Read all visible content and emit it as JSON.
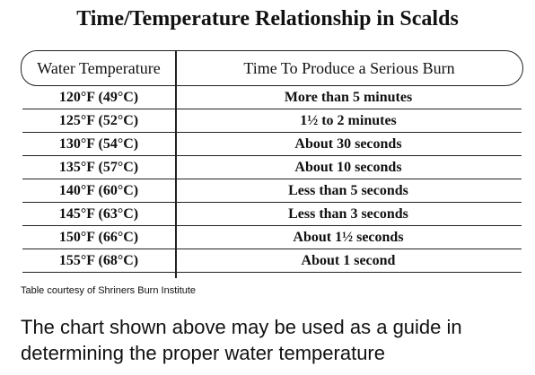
{
  "title": "Time/Temperature Relationship in Scalds",
  "table": {
    "headers": [
      "Water Temperature",
      "Time To Produce a Serious Burn"
    ],
    "rows": [
      [
        "120°F (49°C)",
        "More than 5 minutes"
      ],
      [
        "125°F (52°C)",
        "1½ to 2 minutes"
      ],
      [
        "130°F (54°C)",
        "About 30 seconds"
      ],
      [
        "135°F (57°C)",
        "About 10 seconds"
      ],
      [
        "140°F (60°C)",
        "Less than 5 seconds"
      ],
      [
        "145°F (63°C)",
        "Less than 3 seconds"
      ],
      [
        "150°F (66°C)",
        "About 1½ seconds"
      ],
      [
        "155°F (68°C)",
        "About 1 second"
      ]
    ]
  },
  "credit": "Table courtesy of Shriners Burn Institute",
  "body_lines": [
    "The chart shown above may be used as a guide in",
    "determining the proper water temperature"
  ]
}
